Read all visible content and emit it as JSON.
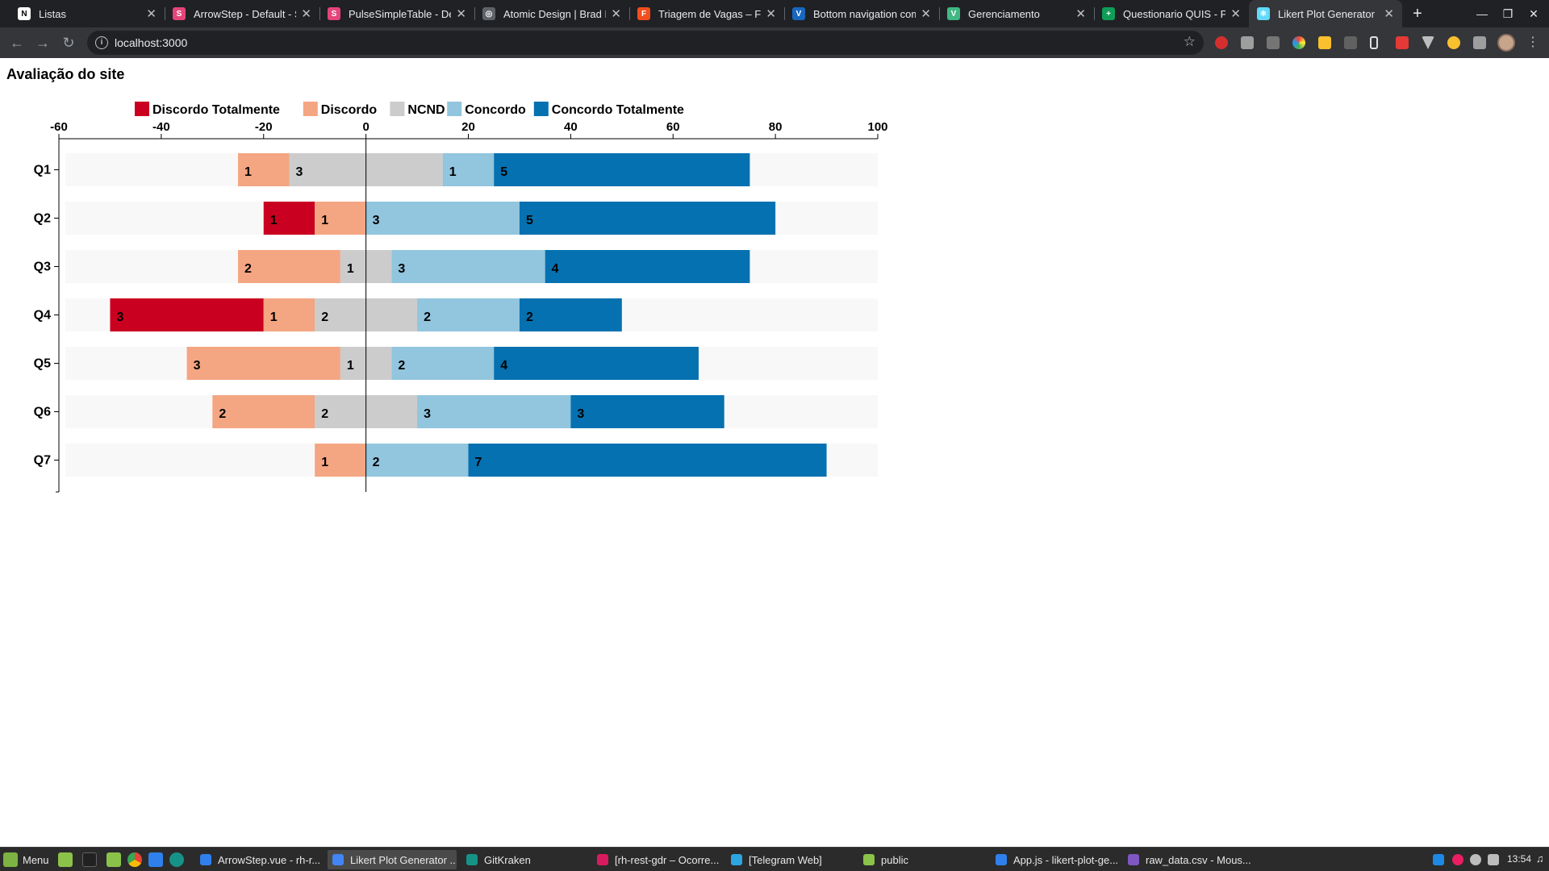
{
  "browser": {
    "tabs": [
      {
        "title": "Listas",
        "favicon_color": "#ffffff",
        "glyph": "N"
      },
      {
        "title": "ArrowStep - Default - S",
        "favicon_color": "#e5457a",
        "glyph": "S"
      },
      {
        "title": "PulseSimpleTable - Def",
        "favicon_color": "#e5457a",
        "glyph": "S"
      },
      {
        "title": "Atomic Design | Brad F",
        "favicon_color": "#5f6368",
        "glyph": "◎"
      },
      {
        "title": "Triagem de Vagas – Fig",
        "favicon_color": "#f24e1e",
        "glyph": "F"
      },
      {
        "title": "Bottom navigation com",
        "favicon_color": "#1867c0",
        "glyph": "V"
      },
      {
        "title": "Gerenciamento",
        "favicon_color": "#41b883",
        "glyph": "V"
      },
      {
        "title": "Questionario QUIS - Pl",
        "favicon_color": "#0f9d58",
        "glyph": "+"
      },
      {
        "title": "Likert Plot Generator",
        "favicon_color": "#61dafb",
        "glyph": "⚛"
      }
    ],
    "active_tab": 8,
    "url": "localhost:3000"
  },
  "page": {
    "title": "Avaliação do site"
  },
  "chart_data": {
    "type": "bar",
    "subtype": "diverging-stacked-likert",
    "title": "Avaliação do site",
    "categories": [
      "Q1",
      "Q2",
      "Q3",
      "Q4",
      "Q5",
      "Q6",
      "Q7"
    ],
    "xlim": [
      -60,
      100
    ],
    "xticks": [
      -60,
      -40,
      -20,
      0,
      20,
      40,
      60,
      80,
      100
    ],
    "unit_per_response": 10,
    "neutral_split": "centered",
    "legend_position": "top",
    "series": [
      {
        "name": "Discordo Totalmente",
        "color": "#ca0020",
        "values": [
          0,
          1,
          0,
          3,
          0,
          0,
          0
        ]
      },
      {
        "name": "Discordo",
        "color": "#f4a582",
        "values": [
          1,
          1,
          2,
          1,
          3,
          2,
          1
        ]
      },
      {
        "name": "NCND",
        "color": "#cccccc",
        "values": [
          3,
          0,
          1,
          2,
          1,
          2,
          0
        ]
      },
      {
        "name": "Concordo",
        "color": "#92c5de",
        "values": [
          1,
          3,
          3,
          2,
          2,
          3,
          2
        ]
      },
      {
        "name": "Concordo Totalmente",
        "color": "#0571b0",
        "values": [
          5,
          5,
          4,
          2,
          4,
          3,
          7
        ]
      }
    ]
  },
  "taskbar": {
    "menu_label": "Menu",
    "tasks": [
      {
        "label": "ArrowStep.vue - rh-r...",
        "color": "#2f80ed"
      },
      {
        "label": "Likert Plot Generator ...",
        "color": "#4285f4"
      },
      {
        "label": "GitKraken",
        "color": "#179287"
      },
      {
        "label": "[rh-rest-gdr – Ocorre...",
        "color": "#d81b60"
      },
      {
        "label": "[Telegram Web]",
        "color": "#2ca5e0"
      },
      {
        "label": "public",
        "color": "#8bc34a"
      },
      {
        "label": "App.js - likert-plot-ge...",
        "color": "#2f80ed"
      },
      {
        "label": "raw_data.csv - Mous...",
        "color": "#7e57c2"
      }
    ],
    "active_task": 1,
    "clock": "13:54"
  }
}
